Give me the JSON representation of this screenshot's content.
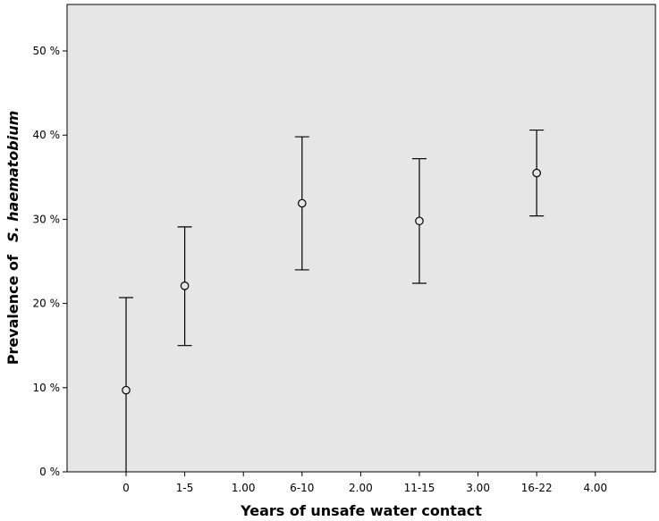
{
  "chart_data": {
    "type": "scatter",
    "categories": [
      "0",
      "1-5",
      "1.00",
      "6-10",
      "2.00",
      "11-15",
      "3.00",
      "16-22",
      "4.00"
    ],
    "points": [
      {
        "category": "0",
        "value": 9.7,
        "lower": 0.0,
        "upper": 20.7
      },
      {
        "category": "1-5",
        "value": 22.1,
        "lower": 15.0,
        "upper": 29.1
      },
      {
        "category": "6-10",
        "value": 31.9,
        "lower": 24.0,
        "upper": 39.8
      },
      {
        "category": "11-15",
        "value": 29.8,
        "lower": 22.4,
        "upper": 37.2
      },
      {
        "category": "16-22",
        "value": 35.5,
        "lower": 30.4,
        "upper": 40.6
      }
    ],
    "y_ticks": [
      "0 %",
      "10 %",
      "20 %",
      "30 %",
      "40 %",
      "50 %"
    ],
    "ylim": [
      0,
      56
    ],
    "xlabel": "Years of unsafe water contact",
    "ylabel_prefix": "Prevalence of",
    "ylabel_italic": "S. haematobium",
    "grid": false,
    "colors": {
      "plot_background": "#e6e6e6",
      "marker": "#000000",
      "axis": "#000000"
    }
  }
}
